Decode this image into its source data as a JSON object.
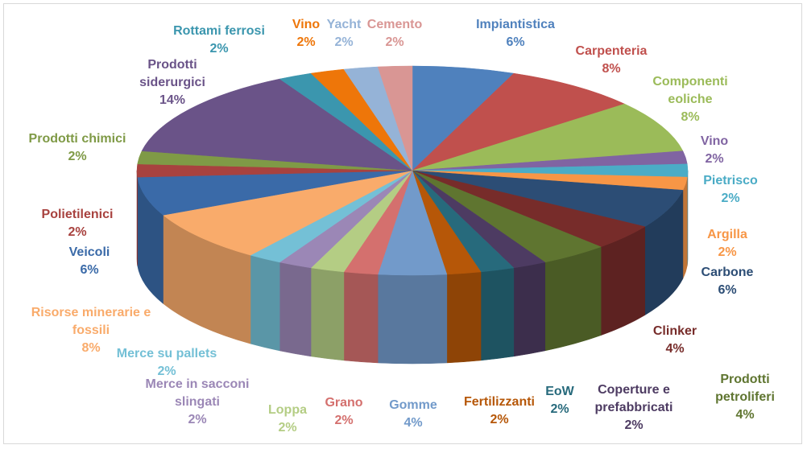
{
  "chart_data": {
    "type": "pie",
    "categories": [
      "Impiantistica",
      "Carpenteria",
      "Componenti eoliche",
      "Vino",
      "Pietrisco",
      "Argilla",
      "Carbone",
      "Clinker",
      "Prodotti petroliferi",
      "Coperture e prefabbricati",
      "EoW",
      "Fertilizzanti",
      "Gomme",
      "Grano",
      "Loppa",
      "Merce in sacconi slingati",
      "Merce su pallets",
      "Risorse minerarie e fossili",
      "Veicoli",
      "Polietilenici",
      "Prodotti chimici",
      "Prodotti siderurgici",
      "Rottami ferrosi",
      "Vino",
      "Yacht",
      "Cemento"
    ],
    "values": [
      6,
      8,
      8,
      2,
      2,
      2,
      6,
      4,
      4,
      2,
      2,
      2,
      4,
      2,
      2,
      2,
      2,
      8,
      6,
      2,
      2,
      14,
      2,
      2,
      2,
      2
    ],
    "value_labels": [
      "6%",
      "8%",
      "8%",
      "2%",
      "2%",
      "2%",
      "6%",
      "4%",
      "4%",
      "2%",
      "2%",
      "2%",
      "4%",
      "2%",
      "2%",
      "2%",
      "2%",
      "8%",
      "6%",
      "2%",
      "2%",
      "14%",
      "2%",
      "2%",
      "2%",
      "2%"
    ],
    "colors": [
      "#4f81bd",
      "#c0504d",
      "#9bbb59",
      "#8064a2",
      "#4bacc6",
      "#f79646",
      "#2c4d75",
      "#772c2a",
      "#5f7530",
      "#4d3b62",
      "#276a7c",
      "#b65708",
      "#729aca",
      "#d4706e",
      "#b4cd84",
      "#9b87b6",
      "#74c0d6",
      "#f9ab6b",
      "#3a6aa8",
      "#a8423f",
      "#7f9a46",
      "#6a5388",
      "#3b96ae",
      "#ee7609",
      "#95b3d7",
      "#d99694"
    ]
  }
}
